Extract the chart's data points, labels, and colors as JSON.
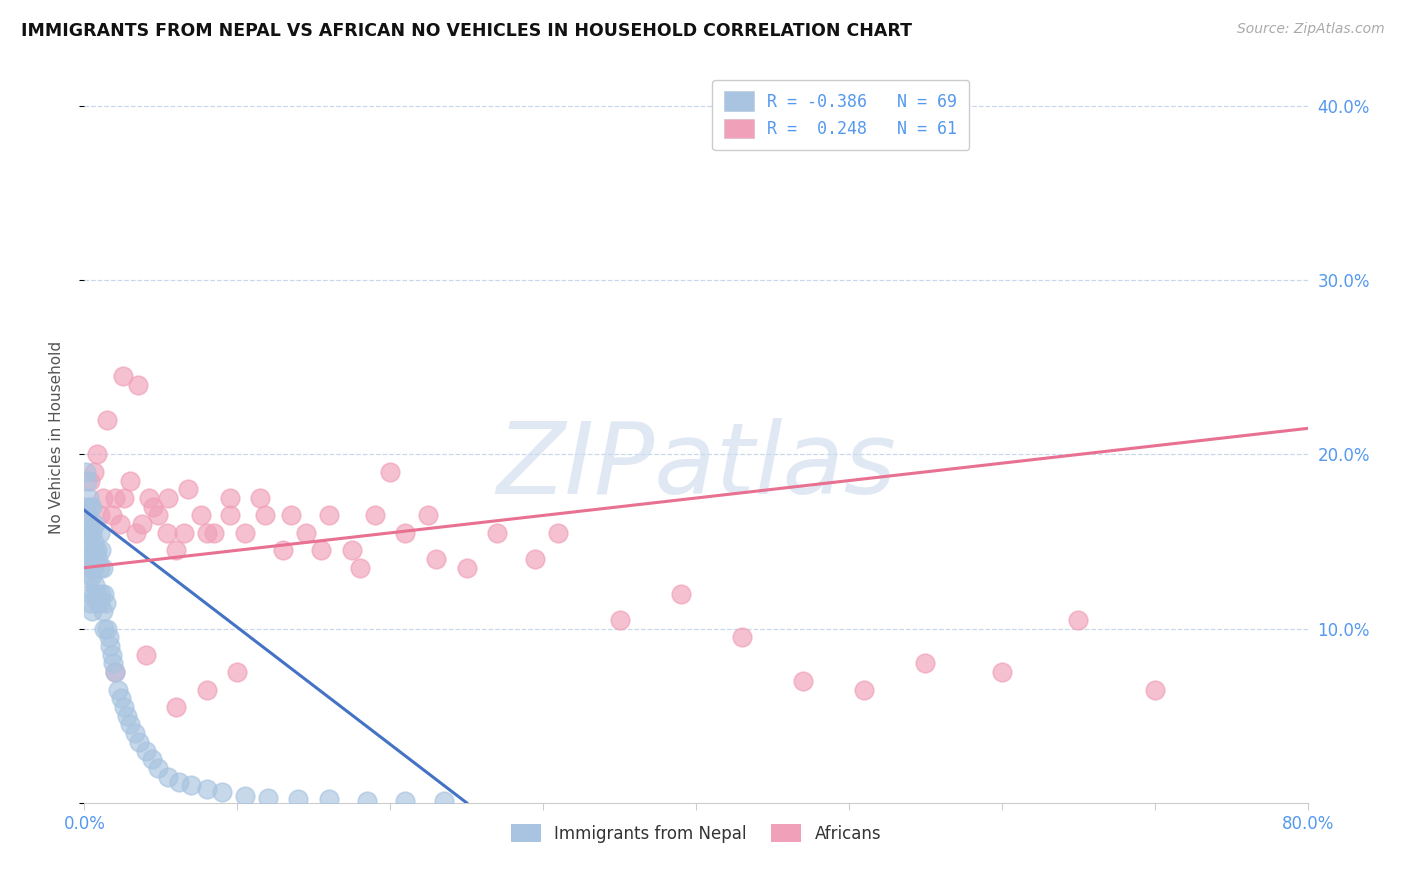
{
  "title": "IMMIGRANTS FROM NEPAL VS AFRICAN NO VEHICLES IN HOUSEHOLD CORRELATION CHART",
  "source": "Source: ZipAtlas.com",
  "ylabel": "No Vehicles in Household",
  "xlim": [
    0.0,
    0.8
  ],
  "ylim": [
    0.0,
    0.42
  ],
  "xticks": [
    0.0,
    0.1,
    0.2,
    0.3,
    0.4,
    0.5,
    0.6,
    0.7,
    0.8
  ],
  "yticks_right": [
    0.1,
    0.2,
    0.3,
    0.4
  ],
  "ytick_labels_right": [
    "10.0%",
    "20.0%",
    "30.0%",
    "40.0%"
  ],
  "legend_blue_label": "R = -0.386   N = 69",
  "legend_pink_label": "R =  0.248   N = 61",
  "watermark": "ZIPatlas",
  "scatter_color_nepal": "#a8c4e0",
  "scatter_color_african": "#f0a0b8",
  "line_color_nepal": "#4472c4",
  "line_color_african": "#e87090",
  "grid_color": "#c8d8ec",
  "background_color": "#ffffff",
  "title_color": "#111111",
  "source_color": "#aaaaaa",
  "axis_label_color": "#555555",
  "tick_color": "#5599ee",
  "nepal_line_x0": 0.0,
  "nepal_line_y0": 0.168,
  "nepal_line_x1": 0.25,
  "nepal_line_y1": 0.0,
  "african_line_x0": 0.0,
  "african_line_y0": 0.135,
  "african_line_x1": 0.8,
  "african_line_y1": 0.215,
  "nepal_x": [
    0.001,
    0.001,
    0.002,
    0.002,
    0.002,
    0.003,
    0.003,
    0.003,
    0.003,
    0.004,
    0.004,
    0.004,
    0.004,
    0.005,
    0.005,
    0.005,
    0.005,
    0.006,
    0.006,
    0.006,
    0.007,
    0.007,
    0.007,
    0.008,
    0.008,
    0.009,
    0.009,
    0.01,
    0.01,
    0.01,
    0.011,
    0.011,
    0.012,
    0.012,
    0.013,
    0.013,
    0.014,
    0.015,
    0.016,
    0.017,
    0.018,
    0.019,
    0.02,
    0.022,
    0.024,
    0.026,
    0.028,
    0.03,
    0.033,
    0.036,
    0.04,
    0.044,
    0.048,
    0.055,
    0.062,
    0.07,
    0.08,
    0.09,
    0.105,
    0.12,
    0.14,
    0.16,
    0.185,
    0.21,
    0.235,
    0.001,
    0.002,
    0.003,
    0.004
  ],
  "nepal_y": [
    0.17,
    0.145,
    0.165,
    0.16,
    0.14,
    0.155,
    0.14,
    0.13,
    0.12,
    0.16,
    0.15,
    0.135,
    0.115,
    0.17,
    0.155,
    0.13,
    0.11,
    0.15,
    0.135,
    0.12,
    0.16,
    0.145,
    0.125,
    0.145,
    0.12,
    0.14,
    0.115,
    0.155,
    0.135,
    0.115,
    0.145,
    0.12,
    0.135,
    0.11,
    0.12,
    0.1,
    0.115,
    0.1,
    0.095,
    0.09,
    0.085,
    0.08,
    0.075,
    0.065,
    0.06,
    0.055,
    0.05,
    0.045,
    0.04,
    0.035,
    0.03,
    0.025,
    0.02,
    0.015,
    0.012,
    0.01,
    0.008,
    0.006,
    0.004,
    0.003,
    0.002,
    0.002,
    0.001,
    0.001,
    0.001,
    0.19,
    0.185,
    0.175,
    0.17
  ],
  "african_x": [
    0.004,
    0.006,
    0.008,
    0.01,
    0.012,
    0.015,
    0.018,
    0.02,
    0.023,
    0.026,
    0.03,
    0.034,
    0.038,
    0.042,
    0.048,
    0.054,
    0.06,
    0.068,
    0.076,
    0.085,
    0.095,
    0.105,
    0.118,
    0.13,
    0.145,
    0.16,
    0.175,
    0.19,
    0.21,
    0.23,
    0.25,
    0.27,
    0.295,
    0.025,
    0.035,
    0.045,
    0.055,
    0.065,
    0.08,
    0.095,
    0.115,
    0.135,
    0.155,
    0.18,
    0.2,
    0.225,
    0.31,
    0.35,
    0.39,
    0.43,
    0.47,
    0.51,
    0.55,
    0.6,
    0.65,
    0.7,
    0.02,
    0.04,
    0.06,
    0.08,
    0.1
  ],
  "african_y": [
    0.185,
    0.19,
    0.2,
    0.165,
    0.175,
    0.22,
    0.165,
    0.175,
    0.16,
    0.175,
    0.185,
    0.155,
    0.16,
    0.175,
    0.165,
    0.155,
    0.145,
    0.18,
    0.165,
    0.155,
    0.175,
    0.155,
    0.165,
    0.145,
    0.155,
    0.165,
    0.145,
    0.165,
    0.155,
    0.14,
    0.135,
    0.155,
    0.14,
    0.245,
    0.24,
    0.17,
    0.175,
    0.155,
    0.155,
    0.165,
    0.175,
    0.165,
    0.145,
    0.135,
    0.19,
    0.165,
    0.155,
    0.105,
    0.12,
    0.095,
    0.07,
    0.065,
    0.08,
    0.075,
    0.105,
    0.065,
    0.075,
    0.085,
    0.055,
    0.065,
    0.075
  ]
}
